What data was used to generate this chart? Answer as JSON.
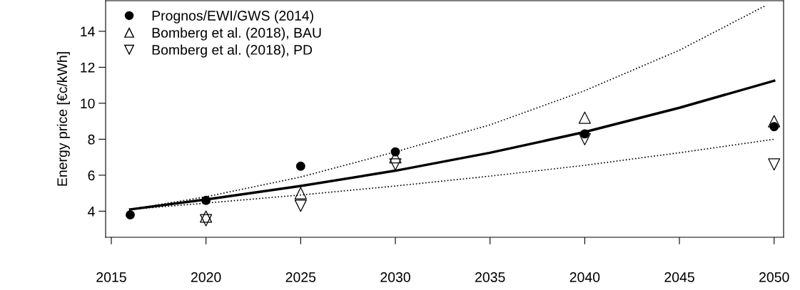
{
  "chart_data": {
    "type": "scatter",
    "ylabel": "Energy price [€c/kWh]",
    "xlim": [
      2014.7,
      2050.5
    ],
    "ylim": [
      2.55,
      15.7
    ],
    "xticks": [
      2015,
      2020,
      2025,
      2030,
      2035,
      2040,
      2045,
      2050
    ],
    "yticks": [
      4,
      6,
      8,
      10,
      12,
      14
    ],
    "grid": false,
    "legend": "top left",
    "series": [
      {
        "name": "Prognos/EWI/GWS (2014)",
        "marker": "circle",
        "color": "#000000",
        "x": [
          2016,
          2020,
          2025,
          2030,
          2040,
          2050
        ],
        "values": [
          3.8,
          4.6,
          6.5,
          7.3,
          8.3,
          8.7
        ]
      },
      {
        "name": "Bomberg et al. (2018), BAU",
        "marker": "triangle",
        "color": "#000000",
        "x": [
          2020,
          2025,
          2030,
          2040,
          2050
        ],
        "values": [
          3.7,
          5.0,
          7.0,
          9.2,
          9.0
        ]
      },
      {
        "name": "Bomberg et al. (2018), PD",
        "marker": "triangle_down",
        "color": "#000000",
        "x": [
          2020,
          2025,
          2030,
          2040,
          2050
        ],
        "values": [
          3.5,
          4.3,
          6.6,
          8.0,
          6.6
        ]
      },
      {
        "type": "line",
        "line_style": "solid",
        "color": "#000000",
        "x": [
          2016,
          2020,
          2025,
          2030,
          2035,
          2040,
          2045,
          2050
        ],
        "values": [
          4.1,
          4.65,
          5.4,
          6.25,
          7.25,
          8.4,
          9.75,
          11.25
        ]
      },
      {
        "type": "line",
        "line_style": "dotted",
        "color": "#000000",
        "x": [
          2016,
          2020,
          2025,
          2030,
          2035,
          2040,
          2045,
          2049.5
        ],
        "values": [
          4.1,
          4.8,
          5.9,
          7.3,
          8.8,
          10.7,
          12.95,
          15.4
        ]
      },
      {
        "type": "line",
        "line_style": "dotted",
        "color": "#000000",
        "x": [
          2016,
          2020,
          2025,
          2030,
          2035,
          2040,
          2045,
          2050
        ],
        "values": [
          4.1,
          4.45,
          4.9,
          5.4,
          5.95,
          6.55,
          7.25,
          8.0
        ]
      }
    ]
  }
}
